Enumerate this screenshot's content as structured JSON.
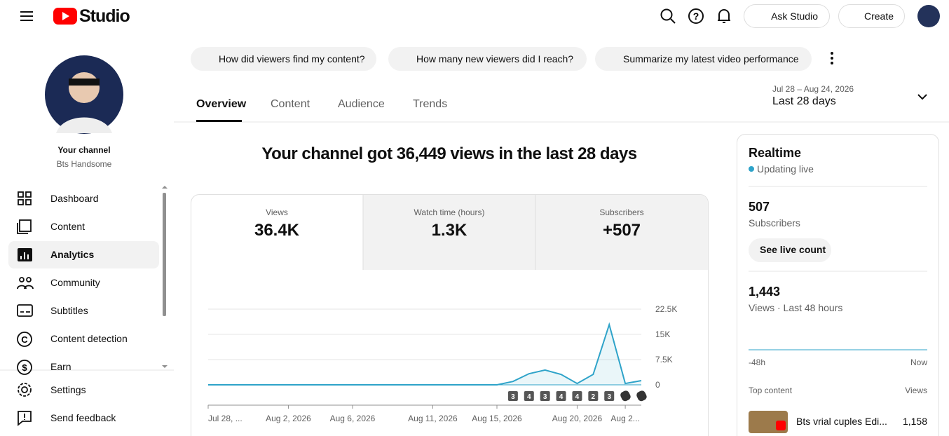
{
  "header": {
    "logo": "Studio",
    "ask": "Ask Studio",
    "create": "Create"
  },
  "sidebar": {
    "channel_label": "Your channel",
    "channel_name": "Bts Handsome",
    "nav": [
      "Dashboard",
      "Content",
      "Analytics",
      "Community",
      "Subtitles",
      "Content detection",
      "Earn"
    ],
    "bottom": [
      "Settings",
      "Send feedback"
    ]
  },
  "chips": [
    "How did viewers find my content?",
    "How many new viewers did I reach?",
    "Summarize my latest video performance"
  ],
  "tabs": [
    "Overview",
    "Content",
    "Audience",
    "Trends"
  ],
  "date_range": {
    "dates": "Jul 28 – Aug 24, 2026",
    "label": "Last 28 days"
  },
  "headline": "Your channel got 36,449 views in the last 28 days",
  "metrics": [
    {
      "label": "Views",
      "value": "36.4K"
    },
    {
      "label": "Watch time (hours)",
      "value": "1.3K"
    },
    {
      "label": "Subscribers",
      "value": "+507"
    }
  ],
  "chart": {
    "type": "line",
    "color": "#2ea3c9",
    "categories": [
      "Jul 28, ...",
      null,
      null,
      null,
      null,
      "Aug 2, 2026",
      null,
      null,
      null,
      "Aug 6, 2026",
      null,
      null,
      null,
      null,
      "Aug 11, 2026",
      null,
      null,
      null,
      "Aug 15, 2026",
      null,
      null,
      null,
      null,
      "Aug 20, 2026",
      null,
      null,
      "Aug 2...",
      null
    ],
    "values": [
      0,
      0,
      0,
      0,
      0,
      0,
      0,
      0,
      0,
      0,
      0,
      0,
      0,
      0,
      0,
      0,
      0,
      0,
      0,
      1000,
      3300,
      4400,
      3100,
      400,
      3100,
      17900,
      400,
      1250
    ],
    "markers": [
      null,
      null,
      null,
      null,
      null,
      null,
      null,
      null,
      null,
      null,
      null,
      null,
      null,
      null,
      null,
      null,
      null,
      null,
      null,
      "3",
      "4",
      "3",
      "4",
      "4",
      "2",
      "3",
      null,
      null
    ],
    "ylim": [
      0,
      22500
    ],
    "yticks": [
      0,
      {
        "value": 7500,
        "label": "7.5K"
      },
      {
        "value": 15000,
        "label": "15K"
      },
      {
        "value": 22500,
        "label": "22.5K"
      }
    ]
  },
  "realtime": {
    "title": "Realtime",
    "status": "Updating live",
    "subs": "507",
    "subs_label": "Subscribers",
    "button": "See live count",
    "views": "1,443",
    "views_label": "Views · Last 48 hours",
    "bars": [
      0,
      0,
      0,
      0,
      0,
      0,
      0,
      0,
      0,
      0,
      0,
      0,
      0,
      0,
      0,
      0,
      0,
      0,
      0,
      0,
      0,
      0,
      0,
      0,
      0,
      0,
      0,
      0,
      0,
      0,
      0,
      0,
      0,
      0,
      0,
      0,
      0,
      0,
      0,
      0,
      0,
      0,
      0,
      0,
      0,
      0,
      0,
      0,
      0,
      0,
      0,
      0,
      0,
      0,
      0,
      0,
      0,
      0,
      0,
      0,
      0,
      0,
      0,
      0,
      0,
      0,
      0,
      0,
      0,
      0,
      0,
      0,
      0,
      0,
      0,
      0,
      0,
      0,
      0,
      0,
      0,
      0,
      0,
      0,
      0,
      0,
      0,
      0,
      0,
      0,
      0,
      0,
      0,
      0,
      0,
      0,
      0,
      0,
      0,
      0,
      0,
      0,
      0,
      0,
      0,
      0,
      0,
      0,
      0,
      0,
      0,
      0,
      0,
      0,
      0,
      0,
      0,
      0,
      0,
      0,
      0,
      0,
      0,
      0,
      0,
      0,
      0,
      0,
      0,
      0,
      0,
      0,
      0,
      0,
      0,
      0,
      0,
      0,
      0,
      0,
      0,
      0,
      0,
      0,
      0,
      0,
      0,
      0,
      0,
      0,
      0,
      0,
      0,
      0,
      0,
      0,
      0,
      0,
      0,
      0,
      0,
      0,
      0,
      0,
      0,
      0,
      0,
      0,
      0,
      0,
      0,
      0,
      0,
      0,
      0,
      0,
      0,
      0,
      0,
      0,
      0,
      0,
      0,
      0,
      0,
      0,
      0,
      0,
      0,
      0,
      0,
      0,
      0,
      0,
      0,
      0,
      0,
      0,
      0,
      0,
      0,
      0,
      0,
      0,
      0,
      0,
      0,
      0,
      0,
      0,
      0,
      0,
      0,
      0,
      0,
      0,
      0,
      0,
      0,
      0,
      0,
      0,
      0,
      0
    ],
    "axis_start": "-48h",
    "axis_end": "Now",
    "top_label": "Top content",
    "top_views_label": "Views",
    "top": [
      {
        "title": "Bts vrial cuples Edi...",
        "views": "1,158"
      }
    ]
  }
}
